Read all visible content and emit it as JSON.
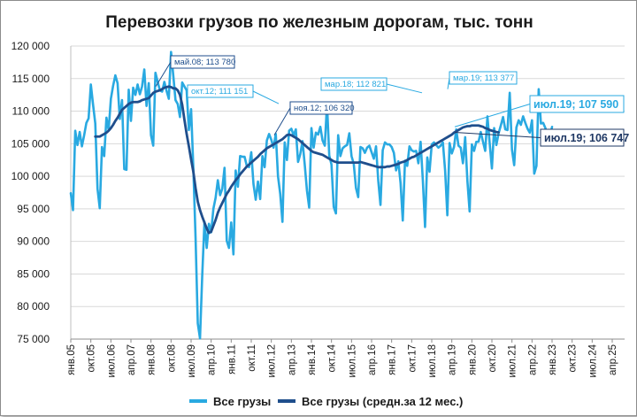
{
  "chart_data": {
    "type": "line",
    "title": "Перевозки грузов по железным дорогам, тыс. тонн",
    "xlabel": "",
    "ylabel": "",
    "ylim": [
      75000,
      120000
    ],
    "y_ticks": [
      "75 000",
      "80 000",
      "85 000",
      "90 000",
      "95 000",
      "100 000",
      "105 000",
      "110 000",
      "115 000",
      "120 000"
    ],
    "x_ticks": [
      "янв.05",
      "окт.05",
      "июл.06",
      "апр.07",
      "янв.08",
      "окт.08",
      "июл.09",
      "апр.10",
      "янв.11",
      "окт.11",
      "июл.12",
      "апр.13",
      "янв.14",
      "окт.14",
      "июл.15",
      "апр.16",
      "янв.17",
      "окт.17",
      "июл.18",
      "апр.19",
      "янв.20",
      "окт.20",
      "июл.21",
      "апр.22",
      "янв.23",
      "окт.23",
      "июл.24",
      "апр.25"
    ],
    "x_start": "янв.05",
    "x_frequency": "monthly",
    "grid": true,
    "legend_position": "bottom",
    "series": [
      {
        "name": "Все грузы",
        "color": "#29a9e1",
        "values": [
          97400,
          94800,
          107000,
          104800,
          106800,
          104600,
          106300,
          108200,
          108900,
          114100,
          111000,
          108100,
          98100,
          95100,
          104500,
          103100,
          109000,
          107100,
          111900,
          113900,
          115500,
          114300,
          108800,
          111700,
          101100,
          101000,
          113300,
          108500,
          113600,
          112500,
          114100,
          112600,
          113800,
          116400,
          110800,
          114300,
          106300,
          104700,
          115900,
          114500,
          113200,
          113000,
          114500,
          113100,
          111900,
          119100,
          115500,
          111700,
          111100,
          109100,
          114400,
          113800,
          113200,
          107100,
          110300,
          101300,
          90600,
          77400,
          75100,
          84800,
          93000,
          89000,
          92700,
          91400,
          95000,
          96700,
          99400,
          97100,
          98100,
          101300,
          90100,
          89000,
          92900,
          88000,
          100900,
          98400,
          103100,
          103000,
          103000,
          101600,
          101400,
          103700,
          98800,
          96400,
          99200,
          96500,
          103100,
          101400,
          105500,
          106500,
          105600,
          104400,
          106500,
          100000,
          97300,
          93000,
          105200,
          102500,
          107000,
          107300,
          106300,
          107200,
          102200,
          103400,
          105400,
          101800,
          97800,
          95200,
          107400,
          104400,
          106700,
          106400,
          107600,
          105500,
          104700,
          111151,
          103200,
          101800,
          95300,
          94300,
          106320,
          103100,
          104300,
          104600,
          104800,
          106600,
          103100,
          101900,
          98200,
          96800,
          104500,
          104300,
          103600,
          104400,
          104700,
          103700,
          102700,
          104600,
          99300,
          95600,
          104000,
          105200,
          104900,
          104900,
          104500,
          103600,
          100900,
          102300,
          99000,
          93200,
          102400,
          101600,
          104600,
          104000,
          103800,
          103900,
          102000,
          105300,
          99400,
          92200,
          102900,
          100700,
          104900,
          105200,
          104800,
          104400,
          104700,
          105200,
          100900,
          94000,
          105100,
          103500,
          104500,
          107200,
          104700,
          104400,
          102000,
          106000,
          99300,
          94600,
          104900,
          103900,
          105300,
          105300,
          106800,
          105300,
          103900,
          109200,
          105100,
          101200,
          107400,
          104800,
          106600,
          107800,
          109100,
          107200,
          107100,
          112821,
          104100,
          101700,
          107500,
          108600,
          107900,
          109200,
          108200,
          107300,
          106700,
          108600,
          100400,
          101600,
          113377,
          108100,
          108200,
          107400,
          106300,
          106000,
          107590
        ]
      },
      {
        "name": "Все грузы (средн.за 12 мес.)",
        "color": "#1f4e8c",
        "values": [
          null,
          null,
          null,
          null,
          null,
          null,
          null,
          null,
          null,
          null,
          null,
          106100,
          106100,
          106100,
          106300,
          106500,
          106700,
          107000,
          107400,
          107900,
          108500,
          109000,
          109600,
          110200,
          110500,
          110800,
          111100,
          111300,
          111400,
          111400,
          111400,
          111500,
          111700,
          111800,
          111900,
          112000,
          112400,
          112800,
          113000,
          113100,
          113200,
          113400,
          113600,
          113700,
          113780,
          113700,
          113500,
          113500,
          113200,
          112500,
          111000,
          108700,
          106500,
          104600,
          102600,
          100700,
          98200,
          96100,
          94800,
          93800,
          92900,
          92000,
          91300,
          91500,
          92400,
          93300,
          94400,
          95200,
          95900,
          96600,
          97300,
          97800,
          98400,
          98900,
          99400,
          99800,
          100300,
          100700,
          101100,
          101500,
          101800,
          102100,
          102400,
          102700,
          103000,
          103400,
          103700,
          104000,
          104300,
          104500,
          104700,
          104900,
          105100,
          105300,
          105500,
          105700,
          106000,
          106320,
          106400,
          106300,
          106100,
          105900,
          105700,
          105400,
          105100,
          104800,
          104500,
          104200,
          103900,
          103700,
          103600,
          103500,
          103400,
          103300,
          103100,
          102900,
          102700,
          102500,
          102300,
          102200,
          102100,
          102100,
          102100,
          102100,
          102100,
          102100,
          102100,
          102100,
          102100,
          102100,
          102200,
          102100,
          102000,
          101900,
          101800,
          101700,
          101600,
          101500,
          101400,
          101400,
          101400,
          101400,
          101500,
          101500,
          101600,
          101700,
          101800,
          101900,
          102100,
          102200,
          102300,
          102500,
          102700,
          102900,
          103000,
          103200,
          103400,
          103600,
          103800,
          104000,
          104200,
          104400,
          104600,
          104800,
          105000,
          105200,
          105400,
          105600,
          105800,
          106000,
          106200,
          106400,
          106700,
          106900,
          107100,
          107300,
          107500,
          107600,
          107700,
          107700,
          107800,
          107800,
          107800,
          107800,
          107700,
          107600,
          107400,
          107300,
          107100,
          107000,
          106900,
          106800,
          106747
        ]
      }
    ],
    "annotations": [
      {
        "label": "май.08;",
        "value": "113 780"
      },
      {
        "label": "окт.12;",
        "value": "111 151"
      },
      {
        "label": "ноя.12;",
        "value": "106 320"
      },
      {
        "label": "мар.18;",
        "value": "112 821"
      },
      {
        "label": "мар.19;",
        "value": "113 377"
      },
      {
        "label": "июл.19;",
        "value": "107 590"
      },
      {
        "label": "июл.19;",
        "value": "106 747"
      }
    ]
  }
}
